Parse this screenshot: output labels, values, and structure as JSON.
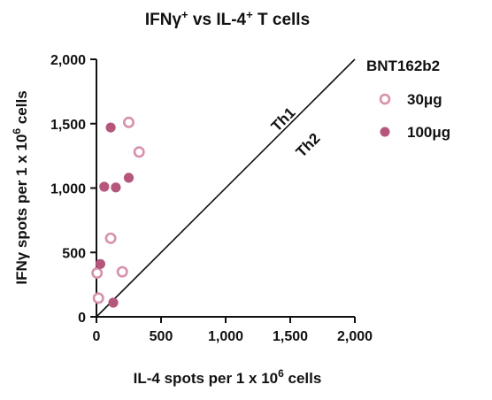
{
  "chart_data": {
    "type": "scatter",
    "title_main": "IFNγ",
    "title_sup1": "+",
    "title_mid": " vs IL-4",
    "title_sup2": "+",
    "title_end": " T cells",
    "xlabel_main": "IL-4 spots per 1 x 10",
    "xlabel_sup": "6",
    "xlabel_end": " cells",
    "ylabel_main": "IFNγ spots per 1 x 10",
    "ylabel_sup": "6",
    "ylabel_end": " cells",
    "xlim": [
      0,
      2000
    ],
    "ylim": [
      0,
      2000
    ],
    "x_ticks": [
      0,
      500,
      1000,
      1500,
      2000
    ],
    "y_ticks": [
      0,
      500,
      1000,
      1500,
      2000
    ],
    "x_tick_labels": [
      "0",
      "500",
      "1,000",
      "1,500",
      "2,000"
    ],
    "y_tick_labels": [
      "0",
      "500",
      "1,000",
      "1,500",
      "2,000"
    ],
    "diagonal_labels": {
      "above": "Th1",
      "below": "Th2"
    },
    "legend": {
      "title": "BNT162b2",
      "placement": "right",
      "entries": [
        "30μg",
        "100μg"
      ]
    },
    "series": [
      {
        "name": "30μg",
        "marker": "open-circle",
        "color": "#c96f91",
        "x": [
          250,
          330,
          110,
          200,
          5,
          15
        ],
        "y": [
          1510,
          1280,
          610,
          350,
          340,
          145
        ]
      },
      {
        "name": "100μg",
        "marker": "filled-circle",
        "color": "#b5577c",
        "x": [
          110,
          60,
          150,
          250,
          30,
          130
        ],
        "y": [
          1470,
          1010,
          1005,
          1080,
          410,
          110
        ]
      }
    ]
  }
}
